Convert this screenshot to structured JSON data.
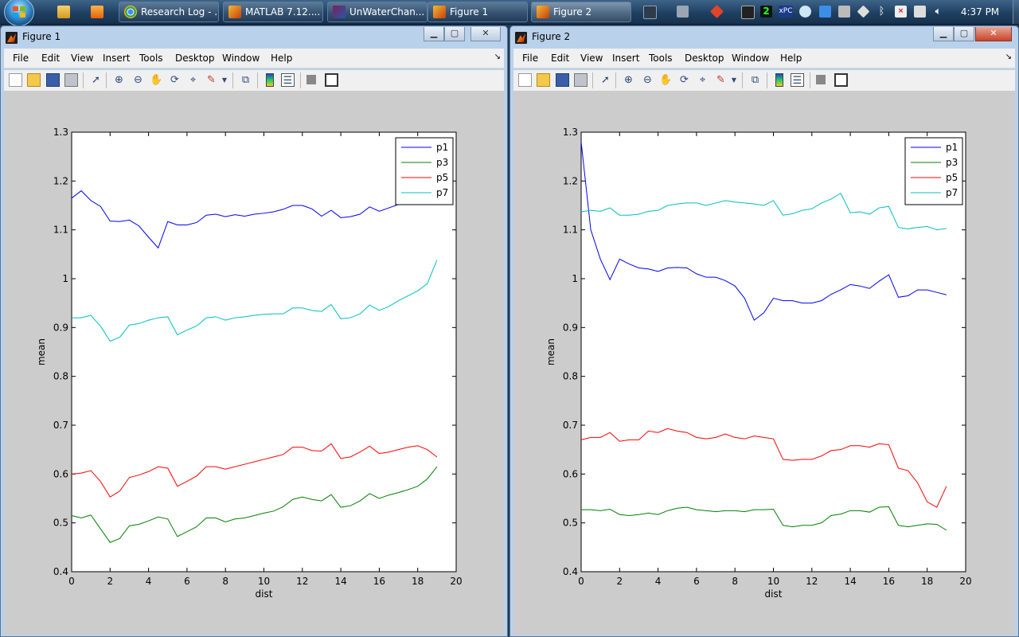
{
  "taskbar": {
    "tasks": [
      {
        "label": "Research Log - ...",
        "icon": "chrome-icon"
      },
      {
        "label": "MATLAB  7.12....",
        "icon": "matlab-icon"
      },
      {
        "label": "UnWaterChan...",
        "icon": "simulink-icon"
      },
      {
        "label": "Figure 1",
        "icon": "matlab-icon"
      },
      {
        "label": "Figure 2",
        "icon": "matlab-icon"
      }
    ],
    "tray_text": {
      "digit": "2",
      "xpc": "xPC"
    },
    "clock": "4:37 PM"
  },
  "windows": [
    {
      "title": "Figure 1",
      "menus": [
        "File",
        "Edit",
        "View",
        "Insert",
        "Tools",
        "Desktop",
        "Window",
        "Help"
      ],
      "chart_data": {
        "type": "line",
        "xlabel": "dist",
        "ylabel": "mean",
        "xlim": [
          0,
          20
        ],
        "ylim": [
          0.4,
          1.3
        ],
        "xticks": [
          "0",
          "2",
          "4",
          "6",
          "8",
          "10",
          "12",
          "14",
          "16",
          "18",
          "20"
        ],
        "yticks": [
          "0.4",
          "0.5",
          "0.6",
          "0.7",
          "0.8",
          "0.9",
          "1",
          "1.1",
          "1.2",
          "1.3"
        ],
        "legend_position": "top-right",
        "grid": false,
        "x": [
          0,
          0.5,
          1,
          1.5,
          2,
          2.5,
          3,
          3.5,
          4,
          4.5,
          5,
          5.5,
          6,
          6.5,
          7,
          7.5,
          8,
          8.5,
          9,
          9.5,
          10,
          10.5,
          11,
          11.5,
          12,
          12.5,
          13,
          13.5,
          14,
          14.5,
          15,
          15.5,
          16,
          16.5,
          17,
          17.5,
          18,
          18.5,
          19
        ],
        "series": [
          {
            "name": "p1",
            "color": "#0000ff",
            "values": [
              1.165,
              1.18,
              1.16,
              1.148,
              1.118,
              1.117,
              1.12,
              1.108,
              1.085,
              1.063,
              1.117,
              1.11,
              1.11,
              1.115,
              1.13,
              1.132,
              1.127,
              1.131,
              1.128,
              1.132,
              1.134,
              1.137,
              1.142,
              1.15,
              1.15,
              1.143,
              1.128,
              1.14,
              1.125,
              1.127,
              1.132,
              1.147,
              1.138,
              1.145,
              1.152,
              1.16,
              1.165,
              1.168,
              1.16
            ]
          },
          {
            "name": "p3",
            "color": "#008000",
            "values": [
              0.515,
              0.51,
              0.516,
              0.488,
              0.46,
              0.468,
              0.494,
              0.497,
              0.504,
              0.512,
              0.508,
              0.472,
              0.482,
              0.492,
              0.51,
              0.51,
              0.502,
              0.508,
              0.51,
              0.515,
              0.52,
              0.524,
              0.533,
              0.548,
              0.553,
              0.548,
              0.545,
              0.558,
              0.532,
              0.535,
              0.545,
              0.56,
              0.55,
              0.557,
              0.562,
              0.568,
              0.575,
              0.59,
              0.615
            ]
          },
          {
            "name": "p5",
            "color": "#ff0000",
            "values": [
              0.6,
              0.602,
              0.607,
              0.585,
              0.553,
              0.565,
              0.593,
              0.598,
              0.605,
              0.615,
              0.612,
              0.575,
              0.585,
              0.596,
              0.615,
              0.615,
              0.61,
              0.615,
              0.62,
              0.625,
              0.63,
              0.635,
              0.64,
              0.655,
              0.655,
              0.648,
              0.647,
              0.662,
              0.632,
              0.635,
              0.645,
              0.657,
              0.642,
              0.645,
              0.65,
              0.655,
              0.658,
              0.65,
              0.635
            ]
          },
          {
            "name": "p7",
            "color": "#00bfbf",
            "values": [
              0.92,
              0.92,
              0.925,
              0.903,
              0.872,
              0.88,
              0.905,
              0.908,
              0.915,
              0.92,
              0.922,
              0.885,
              0.895,
              0.903,
              0.92,
              0.922,
              0.915,
              0.92,
              0.922,
              0.925,
              0.927,
              0.928,
              0.928,
              0.94,
              0.94,
              0.935,
              0.933,
              0.947,
              0.918,
              0.92,
              0.928,
              0.946,
              0.935,
              0.943,
              0.955,
              0.965,
              0.975,
              0.99,
              1.038
            ]
          }
        ]
      }
    },
    {
      "title": "Figure 2",
      "menus": [
        "File",
        "Edit",
        "View",
        "Insert",
        "Tools",
        "Desktop",
        "Window",
        "Help"
      ],
      "chart_data": {
        "type": "line",
        "xlabel": "dist",
        "ylabel": "mean",
        "xlim": [
          0,
          20
        ],
        "ylim": [
          0.4,
          1.3
        ],
        "xticks": [
          "0",
          "2",
          "4",
          "6",
          "8",
          "10",
          "12",
          "14",
          "16",
          "18",
          "20"
        ],
        "yticks": [
          "0.4",
          "0.5",
          "0.6",
          "0.7",
          "0.8",
          "0.9",
          "1",
          "1.1",
          "1.2",
          "1.3"
        ],
        "legend_position": "top-right",
        "grid": false,
        "x": [
          0,
          0.5,
          1,
          1.5,
          2,
          2.5,
          3,
          3.5,
          4,
          4.5,
          5,
          5.5,
          6,
          6.5,
          7,
          7.5,
          8,
          8.5,
          9,
          9.5,
          10,
          10.5,
          11,
          11.5,
          12,
          12.5,
          13,
          13.5,
          14,
          14.5,
          15,
          15.5,
          16,
          16.5,
          17,
          17.5,
          18,
          18.5,
          19
        ],
        "series": [
          {
            "name": "p1",
            "color": "#0000ff",
            "values": [
              1.28,
              1.1,
              1.04,
              0.998,
              1.04,
              1.03,
              1.022,
              1.02,
              1.015,
              1.022,
              1.023,
              1.022,
              1.01,
              1.003,
              1.003,
              0.996,
              0.985,
              0.96,
              0.915,
              0.93,
              0.96,
              0.955,
              0.955,
              0.95,
              0.95,
              0.955,
              0.968,
              0.977,
              0.988,
              0.985,
              0.98,
              0.995,
              1.008,
              0.962,
              0.965,
              0.977,
              0.977,
              0.972,
              0.967
            ]
          },
          {
            "name": "p3",
            "color": "#008000",
            "values": [
              0.527,
              0.527,
              0.525,
              0.528,
              0.517,
              0.515,
              0.517,
              0.52,
              0.517,
              0.525,
              0.53,
              0.532,
              0.527,
              0.525,
              0.523,
              0.525,
              0.525,
              0.523,
              0.527,
              0.527,
              0.528,
              0.495,
              0.492,
              0.495,
              0.495,
              0.5,
              0.515,
              0.518,
              0.525,
              0.525,
              0.522,
              0.532,
              0.533,
              0.495,
              0.492,
              0.495,
              0.498,
              0.497,
              0.485
            ]
          },
          {
            "name": "p5",
            "color": "#ff0000",
            "values": [
              0.67,
              0.675,
              0.675,
              0.685,
              0.667,
              0.67,
              0.67,
              0.688,
              0.685,
              0.693,
              0.688,
              0.685,
              0.675,
              0.672,
              0.675,
              0.682,
              0.675,
              0.672,
              0.678,
              0.675,
              0.672,
              0.63,
              0.628,
              0.63,
              0.63,
              0.637,
              0.648,
              0.65,
              0.658,
              0.658,
              0.655,
              0.662,
              0.66,
              0.612,
              0.607,
              0.582,
              0.543,
              0.532,
              0.575
            ]
          },
          {
            "name": "p7",
            "color": "#00bfbf",
            "values": [
              1.137,
              1.14,
              1.138,
              1.145,
              1.13,
              1.13,
              1.132,
              1.138,
              1.14,
              1.15,
              1.153,
              1.155,
              1.155,
              1.15,
              1.155,
              1.16,
              1.157,
              1.155,
              1.153,
              1.15,
              1.16,
              1.13,
              1.133,
              1.14,
              1.143,
              1.155,
              1.163,
              1.175,
              1.135,
              1.137,
              1.132,
              1.145,
              1.148,
              1.105,
              1.102,
              1.105,
              1.107,
              1.1,
              1.103
            ]
          }
        ]
      }
    }
  ]
}
